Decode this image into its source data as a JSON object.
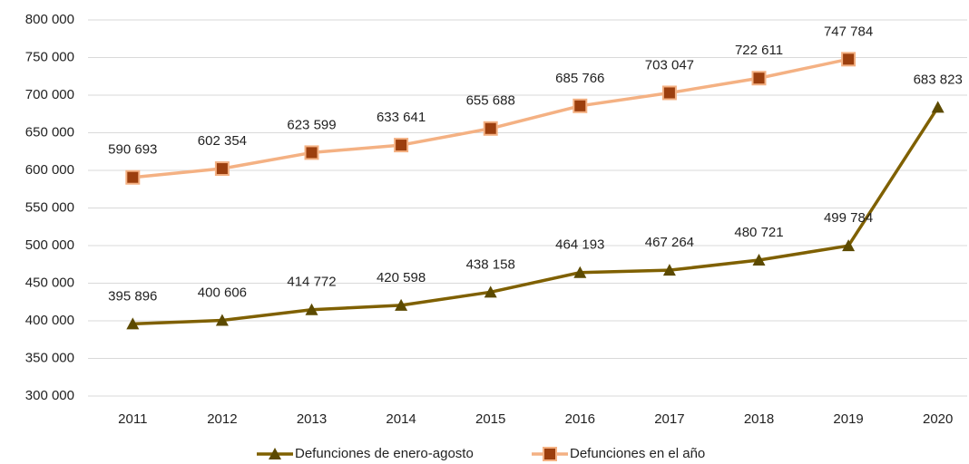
{
  "chart_data": {
    "type": "line",
    "categories": [
      "2011",
      "2012",
      "2013",
      "2014",
      "2015",
      "2016",
      "2017",
      "2018",
      "2019",
      "2020"
    ],
    "series": [
      {
        "name": "Defunciones de enero-agosto",
        "color": "#7f6000",
        "marker": "triangle",
        "marker_color": "#5c4a00",
        "values": [
          395896,
          400606,
          414772,
          420598,
          438158,
          464193,
          467264,
          480721,
          499784,
          683823
        ],
        "value_labels": [
          "395 896",
          "400 606",
          "414 772",
          "420 598",
          "438 158",
          "464 193",
          "467 264",
          "480 721",
          "499 784",
          "683 823"
        ]
      },
      {
        "name": "Defunciones en el año",
        "color": "#f4b183",
        "marker": "square",
        "marker_color": "#9c3f0e",
        "values": [
          590693,
          602354,
          623599,
          633641,
          655688,
          685766,
          703047,
          722611,
          747784,
          null
        ],
        "value_labels": [
          "590 693",
          "602 354",
          "623 599",
          "633 641",
          "655 688",
          "685 766",
          "703 047",
          "722 611",
          "747 784",
          null
        ]
      }
    ],
    "ylim": [
      300000,
      800000
    ],
    "yticks": [
      {
        "value": 300000,
        "label": "300 000"
      },
      {
        "value": 350000,
        "label": "350 000"
      },
      {
        "value": 400000,
        "label": "400 000"
      },
      {
        "value": 450000,
        "label": "450 000"
      },
      {
        "value": 500000,
        "label": "500 000"
      },
      {
        "value": 550000,
        "label": "550 000"
      },
      {
        "value": 600000,
        "label": "600 000"
      },
      {
        "value": 650000,
        "label": "650 000"
      },
      {
        "value": 700000,
        "label": "700 000"
      },
      {
        "value": 750000,
        "label": "750 000"
      },
      {
        "value": 800000,
        "label": "800 000"
      }
    ],
    "grid": true,
    "legend": "bottom"
  }
}
